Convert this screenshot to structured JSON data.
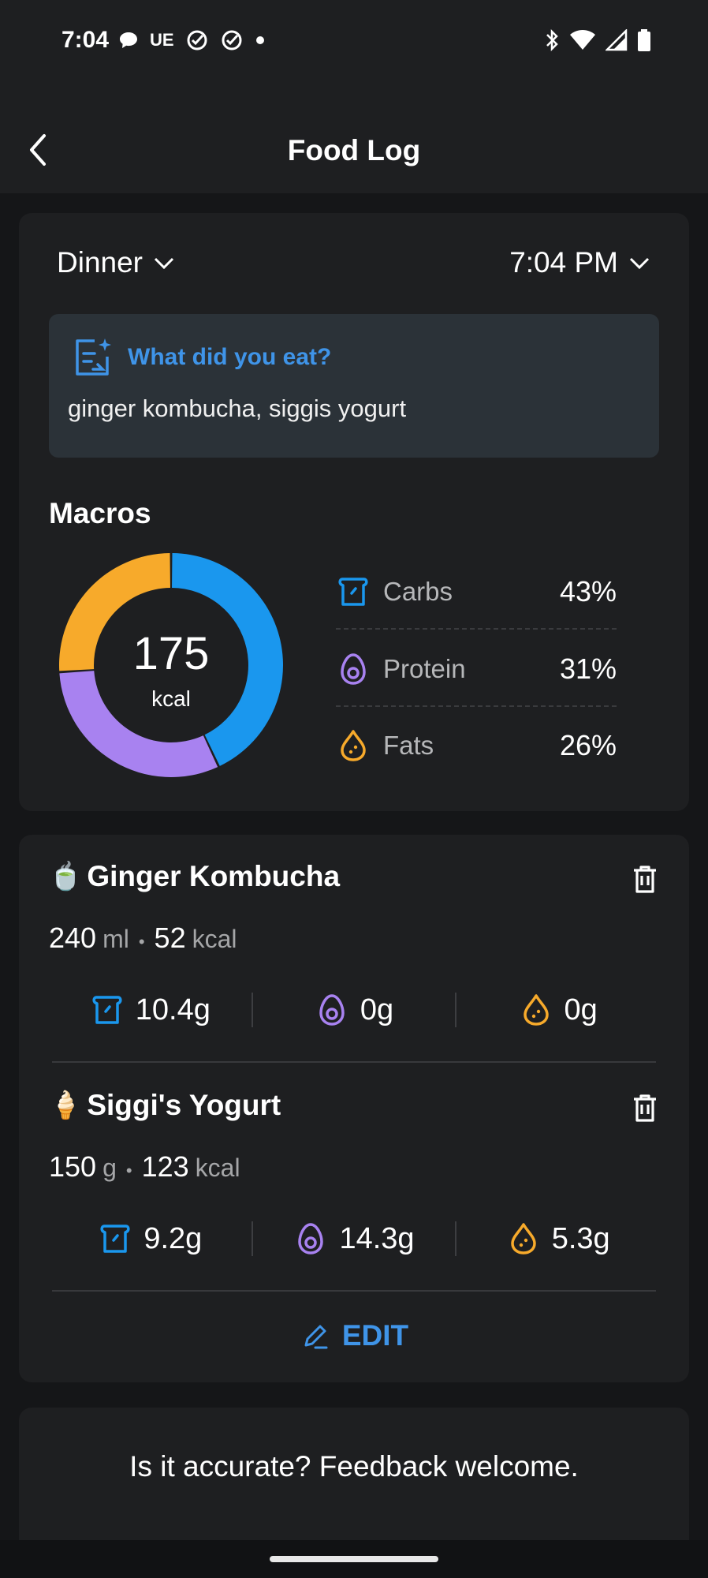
{
  "status_bar": {
    "time": "7:04",
    "carrier": "UE",
    "icons": [
      "chat-bubble-icon",
      "check-circle-icon",
      "check-circle-icon",
      "dot-icon",
      "bluetooth-icon",
      "wifi-icon",
      "signal-icon",
      "battery-icon"
    ]
  },
  "header": {
    "title": "Food Log"
  },
  "meal": {
    "type": "Dinner",
    "time": "7:04 PM"
  },
  "prompt": {
    "label": "What did you eat?",
    "text": "ginger kombucha, siggis yogurt"
  },
  "macros": {
    "title": "Macros",
    "kcal": "175",
    "kcal_unit": "kcal",
    "items": [
      {
        "label": "Carbs",
        "percent": "43%",
        "value": 43,
        "color": "#1a97ee",
        "icon": "bread-icon"
      },
      {
        "label": "Protein",
        "percent": "31%",
        "value": 31,
        "color": "#a882f0",
        "icon": "egg-icon"
      },
      {
        "label": "Fats",
        "percent": "26%",
        "value": 26,
        "color": "#f7aa2b",
        "icon": "drop-icon"
      }
    ]
  },
  "foods": [
    {
      "emoji": "🍵",
      "name": "Ginger Kombucha",
      "qty": "240",
      "qty_unit": "ml",
      "kcal": "52",
      "kcal_unit": "kcal",
      "carbs": "10.4g",
      "protein": "0g",
      "fats": "0g"
    },
    {
      "emoji": "🍦",
      "name": "Siggi's Yogurt",
      "qty": "150",
      "qty_unit": "g",
      "kcal": "123",
      "kcal_unit": "kcal",
      "carbs": "9.2g",
      "protein": "14.3g",
      "fats": "5.3g"
    }
  ],
  "edit_label": "EDIT",
  "feedback_text": "Is it accurate? Feedback welcome.",
  "colors": {
    "accent": "#3f94e8",
    "carbs": "#1a97ee",
    "protein": "#a882f0",
    "fats": "#f7aa2b",
    "background": "#151618",
    "card": "#1e1f21"
  }
}
